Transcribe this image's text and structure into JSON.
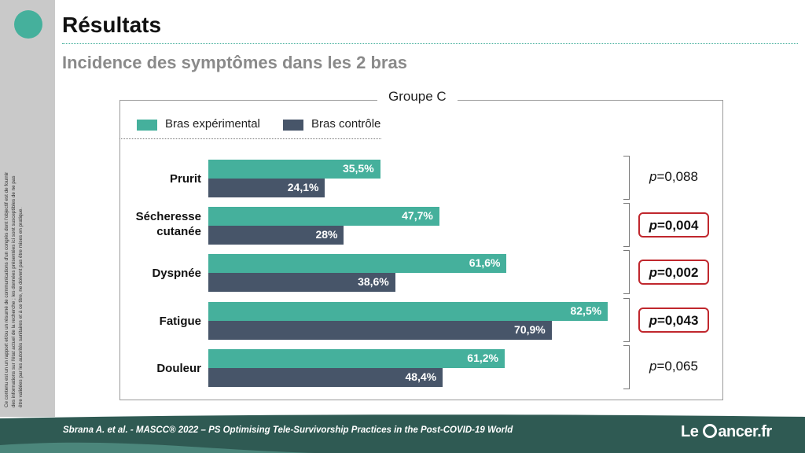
{
  "slide": {
    "title": "Résultats",
    "subtitle": "Incidence des symptômes dans les 2 bras",
    "disclaimer": "Ce contenu est un un rapport et/ou un résumé de communications d'un congrès dont l'objectif est de fournir des informations sur l'état actuel de la recherche ; les données présentées ici sont susceptibles de ne pas être validées par les autorités sanitaires et à ce titre, ne doivent pas être mises en pratique.",
    "citation": "Sbrana A. et al. - MASCC® 2022 – PS Optimising Tele-Survivorship Practices in the Post-COVID-19 World",
    "logo": {
      "before": "Le",
      "after": "ancer.fr"
    }
  },
  "colors": {
    "experimental": "#45b09c",
    "control": "#475569",
    "significant_box": "#c0272d",
    "footer": "#2f5a53"
  },
  "chart_data": {
    "type": "bar",
    "orientation": "horizontal",
    "title": "Groupe C",
    "categories": [
      "Prurit",
      "Sécheresse cutanée",
      "Dyspnée",
      "Fatigue",
      "Douleur"
    ],
    "series": [
      {
        "name": "Bras expérimental",
        "values": [
          35.5,
          47.7,
          61.6,
          82.5,
          61.2
        ],
        "labels": [
          "35,5%",
          "47,7%",
          "61,6%",
          "82,5%",
          "61,2%"
        ]
      },
      {
        "name": "Bras contrôle",
        "values": [
          24.1,
          28,
          38.6,
          70.9,
          48.4
        ],
        "labels": [
          "24,1%",
          "28%",
          "38,6%",
          "70,9%",
          "48,4%"
        ]
      }
    ],
    "p_values": [
      {
        "prefix": "p",
        "text": "=0,088",
        "significant": false
      },
      {
        "prefix": "p",
        "text": "=0,004",
        "significant": true
      },
      {
        "prefix": "p",
        "text": "=0,002",
        "significant": true
      },
      {
        "prefix": "p",
        "text": "=0,043",
        "significant": true
      },
      {
        "prefix": "p",
        "text": "=0,065",
        "significant": false
      }
    ],
    "legend_position": "top-left",
    "grid": false
  }
}
